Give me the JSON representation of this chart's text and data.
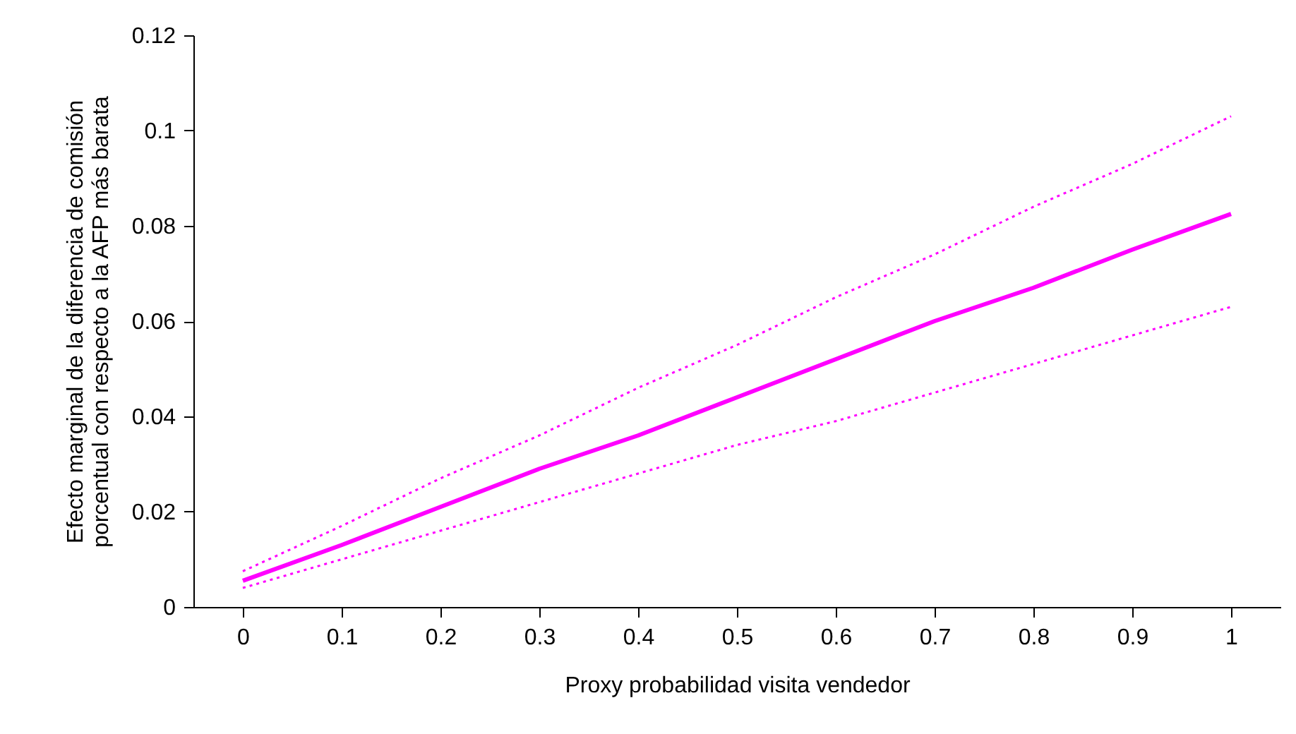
{
  "chart_data": {
    "type": "line",
    "xlabel": "Proxy probabilidad visita vendedor",
    "ylabel": "Efecto marginal de la diferencia de comisión\nporcentual con respecto a la AFP más barata",
    "x": [
      0,
      0.1,
      0.2,
      0.3,
      0.4,
      0.5,
      0.6,
      0.7,
      0.8,
      0.9,
      1
    ],
    "series": [
      {
        "color": "#ff00ff",
        "line_style": "solid",
        "values": [
          0.0055,
          0.013,
          0.021,
          0.029,
          0.036,
          0.044,
          0.052,
          0.06,
          0.067,
          0.075,
          0.0825
        ]
      },
      {
        "color": "#ff00ff",
        "line_style": "dotted",
        "values": [
          0.0075,
          0.017,
          0.027,
          0.036,
          0.046,
          0.055,
          0.065,
          0.074,
          0.084,
          0.093,
          0.103
        ]
      },
      {
        "color": "#ff00ff",
        "line_style": "dotted",
        "values": [
          0.004,
          0.01,
          0.016,
          0.022,
          0.028,
          0.034,
          0.039,
          0.045,
          0.051,
          0.057,
          0.063
        ]
      }
    ],
    "xlim": [
      -0.05,
      1.05
    ],
    "xticks": [
      0,
      0.1,
      0.2,
      0.3,
      0.4,
      0.5,
      0.6,
      0.7,
      0.8,
      0.9,
      1
    ],
    "ylim": [
      0,
      0.12
    ],
    "yticks": [
      0,
      0.02,
      0.04,
      0.06,
      0.08,
      0.1,
      0.12
    ],
    "grid": false,
    "marker": "none"
  }
}
